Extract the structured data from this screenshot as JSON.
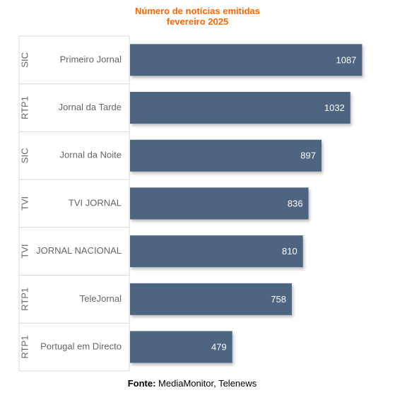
{
  "chart_data": {
    "type": "bar",
    "orientation": "horizontal",
    "title_line1": "Número de notícias emitidas",
    "title_line2": "fevereiro 2025",
    "categories": [
      {
        "channel": "SIC",
        "program": "Primeiro Jornal",
        "value": 1087
      },
      {
        "channel": "RTP1",
        "program": "Jornal da Tarde",
        "value": 1032
      },
      {
        "channel": "SIC",
        "program": "Jornal da Noite",
        "value": 897
      },
      {
        "channel": "TVI",
        "program": "TVI JORNAL",
        "value": 836
      },
      {
        "channel": "TVI",
        "program": "JORNAL NACIONAL",
        "value": 810
      },
      {
        "channel": "RTP1",
        "program": "TeleJornal",
        "value": 758
      },
      {
        "channel": "RTP1",
        "program": "Portugal em Directo",
        "value": 479
      }
    ],
    "xlim": [
      0,
      1175
    ],
    "colors": {
      "bar": "#4d6580",
      "title": "#ff6600"
    }
  },
  "source": {
    "label": "Fonte:",
    "text": "MediaMonitor, Telenews"
  }
}
